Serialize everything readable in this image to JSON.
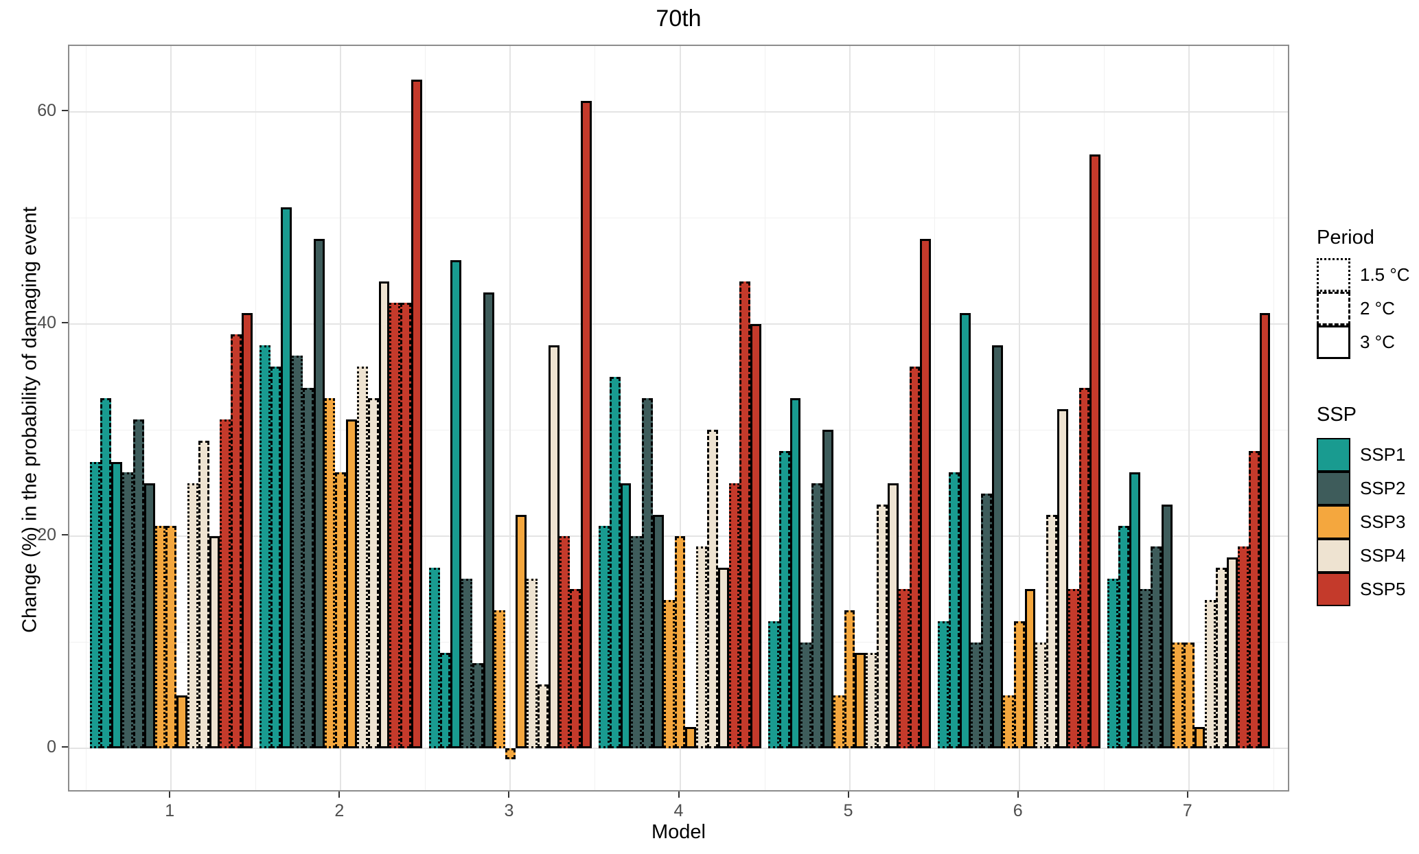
{
  "chart_data": {
    "type": "bar",
    "title": "70th",
    "xlabel": "Model",
    "ylabel": "Change (%) in the probability of damaging event",
    "categories": [
      "1",
      "2",
      "3",
      "4",
      "5",
      "6",
      "7"
    ],
    "y_ticks": [
      0,
      20,
      40,
      60
    ],
    "y_minor_ticks": [
      10,
      30,
      50
    ],
    "ylim": [
      -4.2,
      66.2
    ],
    "grid": "major and minor gridlines, light gray on white, gray panel border",
    "legend_position": "right",
    "legend": {
      "period_title": "Period",
      "periods": [
        {
          "label": "1.5 °C",
          "linetype": "dotted"
        },
        {
          "label": "2 °C",
          "linetype": "dashed"
        },
        {
          "label": "3 °C",
          "linetype": "solid"
        }
      ],
      "ssp_title": "SSP",
      "ssps": [
        {
          "name": "SSP1",
          "color": "#199b90"
        },
        {
          "name": "SSP2",
          "color": "#3e5c5b"
        },
        {
          "name": "SSP3",
          "color": "#f4a73e"
        },
        {
          "name": "SSP4",
          "color": "#eee3d1"
        },
        {
          "name": "SSP5",
          "color": "#c43a2b"
        }
      ]
    },
    "series": [
      {
        "ssp": "SSP1",
        "period": "1.5 °C",
        "values": [
          27,
          38,
          17,
          21,
          12,
          12,
          16
        ]
      },
      {
        "ssp": "SSP1",
        "period": "2 °C",
        "values": [
          33,
          36,
          9,
          35,
          28,
          26,
          21
        ]
      },
      {
        "ssp": "SSP1",
        "period": "3 °C",
        "values": [
          27,
          51,
          46,
          25,
          33,
          41,
          26
        ]
      },
      {
        "ssp": "SSP2",
        "period": "1.5 °C",
        "values": [
          26,
          37,
          16,
          20,
          10,
          10,
          15
        ]
      },
      {
        "ssp": "SSP2",
        "period": "2 °C",
        "values": [
          31,
          34,
          8,
          33,
          25,
          24,
          19
        ]
      },
      {
        "ssp": "SSP2",
        "period": "3 °C",
        "values": [
          25,
          48,
          43,
          22,
          30,
          38,
          23
        ]
      },
      {
        "ssp": "SSP3",
        "period": "1.5 °C",
        "values": [
          21,
          33,
          13,
          14,
          5,
          5,
          10
        ]
      },
      {
        "ssp": "SSP3",
        "period": "2 °C",
        "values": [
          21,
          26,
          -1,
          20,
          13,
          12,
          10
        ]
      },
      {
        "ssp": "SSP3",
        "period": "3 °C",
        "values": [
          5,
          31,
          22,
          2,
          9,
          15,
          2
        ]
      },
      {
        "ssp": "SSP4",
        "period": "1.5 °C",
        "values": [
          25,
          36,
          16,
          19,
          9,
          10,
          14
        ]
      },
      {
        "ssp": "SSP4",
        "period": "2 °C",
        "values": [
          29,
          33,
          6,
          30,
          23,
          22,
          17
        ]
      },
      {
        "ssp": "SSP4",
        "period": "3 °C",
        "values": [
          20,
          44,
          38,
          17,
          25,
          32,
          18
        ]
      },
      {
        "ssp": "SSP5",
        "period": "1.5 °C",
        "values": [
          31,
          42,
          20,
          25,
          15,
          15,
          19
        ]
      },
      {
        "ssp": "SSP5",
        "period": "2 °C",
        "values": [
          39,
          42,
          15,
          44,
          36,
          34,
          28
        ]
      },
      {
        "ssp": "SSP5",
        "period": "3 °C",
        "values": [
          41,
          63,
          61,
          40,
          48,
          56,
          41
        ]
      }
    ],
    "colors": {
      "background": "#ffffff",
      "panel_border": "#8c8c8c",
      "grid_major": "#e4e4e4",
      "grid_minor": "#f1f1f1",
      "bar_outline": "#000000",
      "tick_label": "#4d4d4d",
      "axis_title": "#000000"
    }
  }
}
